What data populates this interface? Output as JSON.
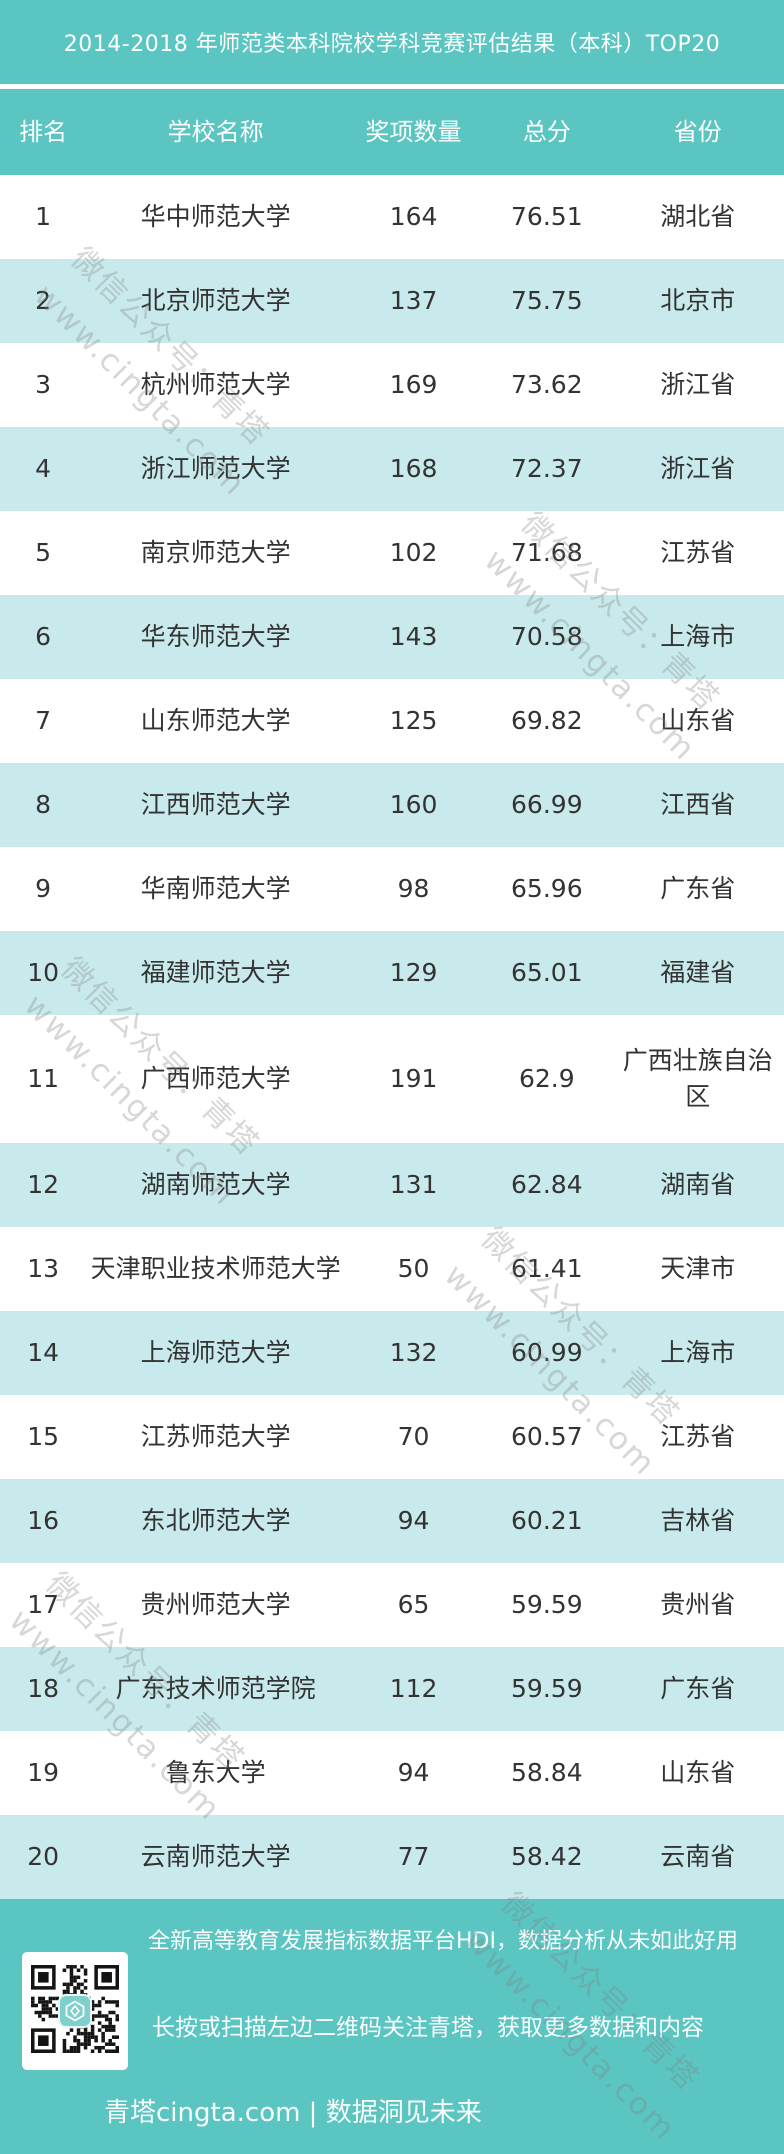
{
  "title": "2014-2018 年师范类本科院校学科竞赛评估结果（本科）TOP20",
  "table": {
    "columns": [
      "排名",
      "学校名称",
      "奖项数量",
      "总分",
      "省份"
    ],
    "rows": [
      {
        "rank": "1",
        "school": "华中师范大学",
        "awards": "164",
        "score": "76.51",
        "province": "湖北省"
      },
      {
        "rank": "2",
        "school": "北京师范大学",
        "awards": "137",
        "score": "75.75",
        "province": "北京市"
      },
      {
        "rank": "3",
        "school": "杭州师范大学",
        "awards": "169",
        "score": "73.62",
        "province": "浙江省"
      },
      {
        "rank": "4",
        "school": "浙江师范大学",
        "awards": "168",
        "score": "72.37",
        "province": "浙江省"
      },
      {
        "rank": "5",
        "school": "南京师范大学",
        "awards": "102",
        "score": "71.68",
        "province": "江苏省"
      },
      {
        "rank": "6",
        "school": "华东师范大学",
        "awards": "143",
        "score": "70.58",
        "province": "上海市"
      },
      {
        "rank": "7",
        "school": "山东师范大学",
        "awards": "125",
        "score": "69.82",
        "province": "山东省"
      },
      {
        "rank": "8",
        "school": "江西师范大学",
        "awards": "160",
        "score": "66.99",
        "province": "江西省"
      },
      {
        "rank": "9",
        "school": "华南师范大学",
        "awards": "98",
        "score": "65.96",
        "province": "广东省"
      },
      {
        "rank": "10",
        "school": "福建师范大学",
        "awards": "129",
        "score": "65.01",
        "province": "福建省"
      },
      {
        "rank": "11",
        "school": "广西师范大学",
        "awards": "191",
        "score": "62.9",
        "province": "广西壮族自治区"
      },
      {
        "rank": "12",
        "school": "湖南师范大学",
        "awards": "131",
        "score": "62.84",
        "province": "湖南省"
      },
      {
        "rank": "13",
        "school": "天津职业技术师范大学",
        "awards": "50",
        "score": "61.41",
        "province": "天津市"
      },
      {
        "rank": "14",
        "school": "上海师范大学",
        "awards": "132",
        "score": "60.99",
        "province": "上海市"
      },
      {
        "rank": "15",
        "school": "江苏师范大学",
        "awards": "70",
        "score": "60.57",
        "province": "江苏省"
      },
      {
        "rank": "16",
        "school": "东北师范大学",
        "awards": "94",
        "score": "60.21",
        "province": "吉林省"
      },
      {
        "rank": "17",
        "school": "贵州师范大学",
        "awards": "65",
        "score": "59.59",
        "province": "贵州省"
      },
      {
        "rank": "18",
        "school": "广东技术师范学院",
        "awards": "112",
        "score": "59.59",
        "province": "广东省"
      },
      {
        "rank": "19",
        "school": "鲁东大学",
        "awards": "94",
        "score": "58.84",
        "province": "山东省"
      },
      {
        "rank": "20",
        "school": "云南师范大学",
        "awards": "77",
        "score": "58.42",
        "province": "云南省"
      }
    ]
  },
  "watermark": {
    "line1": "微信公众号：青塔",
    "line2": "www.cingta.com"
  },
  "footer": {
    "promo": "全新高等教育发展指标数据平台HDI，数据分析从未如此好用",
    "instruction": "长按或扫描左边二维码关注青塔，获取更多数据和内容",
    "brand": "青塔cingta.com | 数据洞见未来",
    "qr": "qr-code"
  },
  "colors": {
    "teal": "#5BC5C2",
    "light_row": "#C9EAEC",
    "text": "#333333",
    "white": "#FFFFFF"
  }
}
